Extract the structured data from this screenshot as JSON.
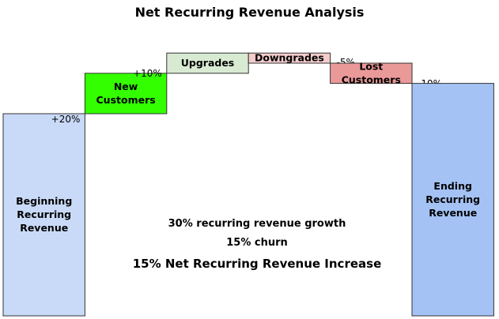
{
  "chart_data": {
    "type": "waterfall",
    "title": "Net Recurring Revenue Analysis",
    "steps": [
      {
        "label": "Beginning Recurring Revenue",
        "kind": "total",
        "value": 100,
        "color": "#c9daf8"
      },
      {
        "label": "New Customers",
        "kind": "delta",
        "value": 20,
        "display": "+20%",
        "color": "#33ff00"
      },
      {
        "label": "Upgrades",
        "kind": "delta",
        "value": 10,
        "display": "+10%",
        "color": "#d9ead3"
      },
      {
        "label": "Downgrades",
        "kind": "delta",
        "value": -5,
        "display": "-5%",
        "color": "#f4cccc"
      },
      {
        "label": "Lost Customers",
        "kind": "delta",
        "value": -10,
        "display": "-10%",
        "color": "#ea9999"
      },
      {
        "label": "Ending Recurring Revenue",
        "kind": "total",
        "value": 115,
        "color": "#a4c2f4"
      }
    ],
    "annotations": [
      "30% recurring revenue growth",
      "15% churn",
      "15% Net Recurring Revenue Increase"
    ]
  }
}
